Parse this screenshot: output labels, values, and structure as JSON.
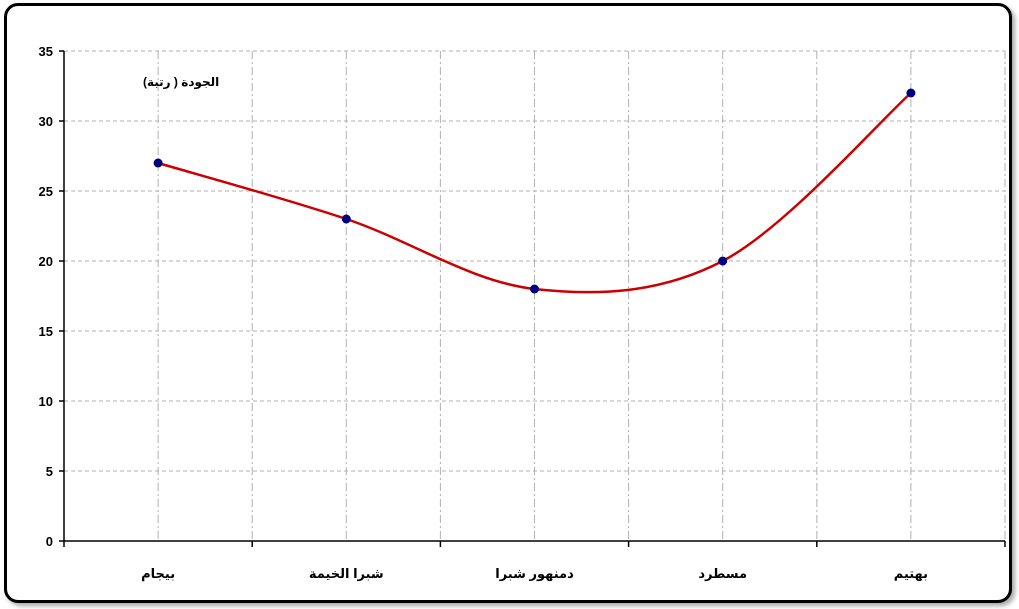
{
  "chart_data": {
    "type": "line",
    "categories": [
      "بيجام",
      "شبرا الخيمة",
      "دمنهور شبرا",
      "مسطرد",
      "بهتيم"
    ],
    "values": [
      27,
      23,
      18,
      20,
      32
    ],
    "title": "",
    "xlabel": "",
    "ylabel": "الجودة ( رتبة)",
    "ylim": [
      0,
      35
    ],
    "yticks": [
      0,
      5,
      10,
      15,
      20,
      25,
      30,
      35
    ],
    "grid": true,
    "smooth": true,
    "line_color": "#cc0000",
    "marker_color": "#000080"
  }
}
